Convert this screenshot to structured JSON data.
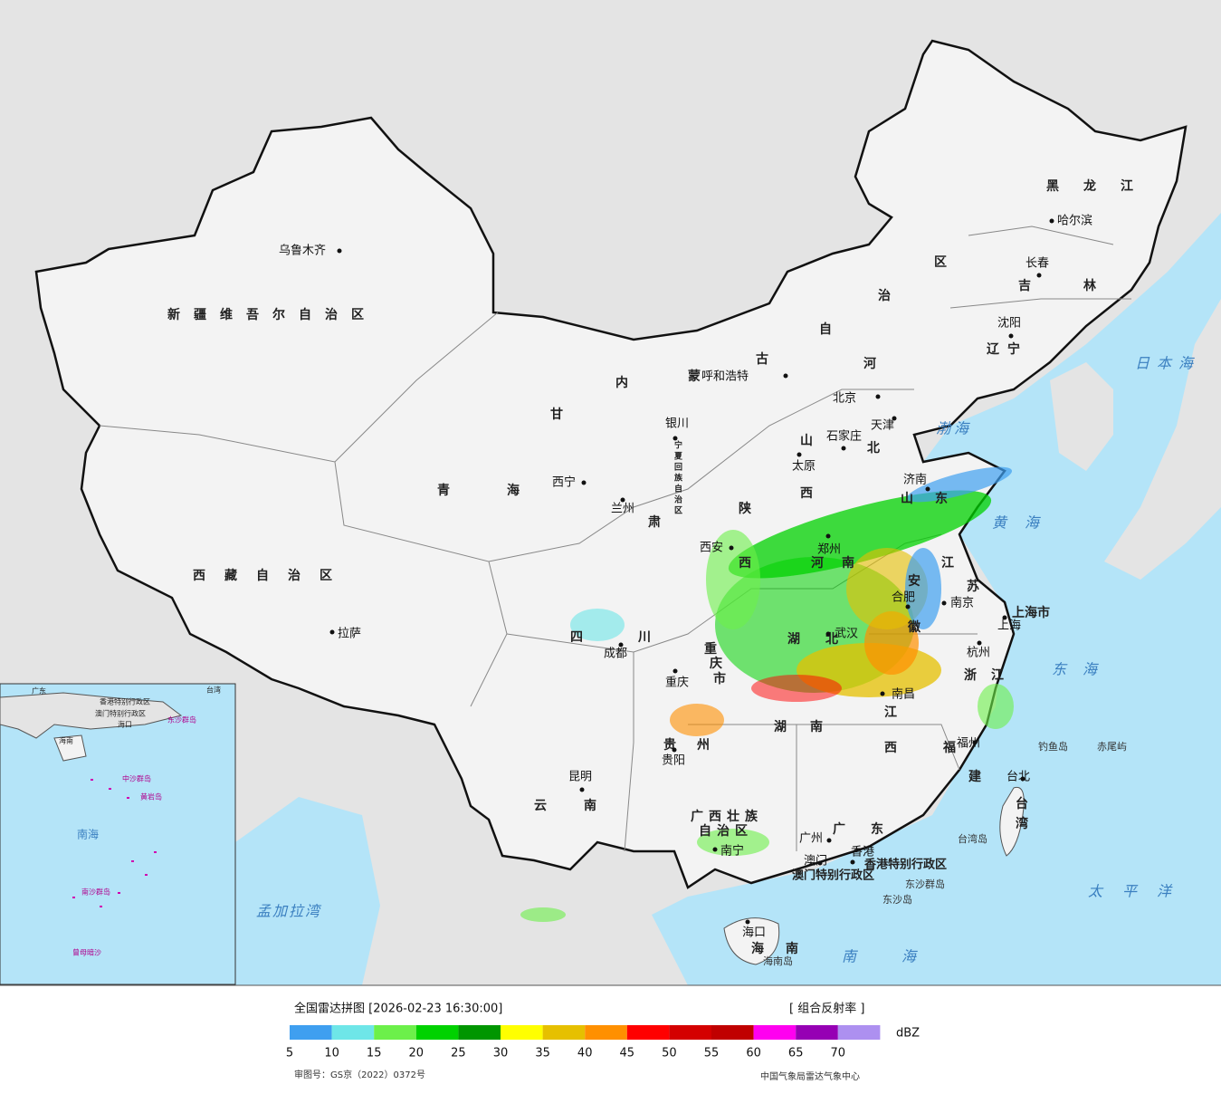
{
  "map": {
    "province_labels": [
      "新疆维吾尔自治区",
      "西藏自治区",
      "青海",
      "甘肃",
      "内蒙古自治区",
      "黑龙江",
      "吉林",
      "辽宁",
      "河北",
      "山西",
      "山东",
      "河南",
      "陕西",
      "宁夏回族自治区",
      "四川",
      "重庆市",
      "湖北",
      "安徽",
      "江苏",
      "上海市",
      "浙江",
      "江西",
      "湖南",
      "贵州",
      "云南",
      "福建",
      "广西壮族自治区",
      "广东",
      "海南",
      "台湾",
      "香港特别行政区",
      "澳门特别行政区"
    ],
    "city_labels": [
      "乌鲁木齐",
      "拉萨",
      "西宁",
      "兰州",
      "银川",
      "呼和浩特",
      "北京",
      "天津",
      "石家庄",
      "太原",
      "济南",
      "西安",
      "郑州",
      "合肥",
      "南京",
      "上海",
      "杭州",
      "武汉",
      "成都",
      "重庆",
      "南昌",
      "福州",
      "贵阳",
      "昆明",
      "南宁",
      "广州",
      "澳门",
      "香港",
      "海口",
      "台北",
      "哈尔滨",
      "长春",
      "沈阳"
    ],
    "island_labels": [
      "台湾岛",
      "海南岛",
      "东沙群岛",
      "东沙岛",
      "钓鱼岛",
      "赤尾屿"
    ],
    "sea_labels": [
      "日本海",
      "渤海",
      "黄海",
      "东海",
      "太平洋",
      "南海",
      "孟加拉湾"
    ],
    "inset_labels": [
      "广东",
      "香港特别行政区",
      "澳门特别行政区",
      "海口",
      "海南",
      "台湾",
      "东沙群岛",
      "中沙群岛",
      "黄岩岛",
      "南海",
      "南沙群岛",
      "曾母暗沙"
    ]
  },
  "legend": {
    "title": "全国雷达拼图 [2026-02-23 16:30:00]",
    "product": "[ 组合反射率 ]",
    "unit": "dBZ",
    "items": [
      {
        "value": 5,
        "color": "#3f9ff0"
      },
      {
        "value": 10,
        "color": "#6ee6e8"
      },
      {
        "value": 15,
        "color": "#6cf04a"
      },
      {
        "value": 20,
        "color": "#00d200"
      },
      {
        "value": 25,
        "color": "#009600"
      },
      {
        "value": 30,
        "color": "#ffff00"
      },
      {
        "value": 35,
        "color": "#e6c000"
      },
      {
        "value": 40,
        "color": "#ff9000"
      },
      {
        "value": 45,
        "color": "#ff0000"
      },
      {
        "value": 50,
        "color": "#d40000"
      },
      {
        "value": 55,
        "color": "#c00000"
      },
      {
        "value": 60,
        "color": "#ff00f0"
      },
      {
        "value": 65,
        "color": "#9600b4"
      },
      {
        "value": 70,
        "color": "#ad90f0"
      }
    ]
  },
  "footer": {
    "approval": "审图号：GS京（2022）0372号",
    "agency": "中国气象局雷达气象中心"
  }
}
